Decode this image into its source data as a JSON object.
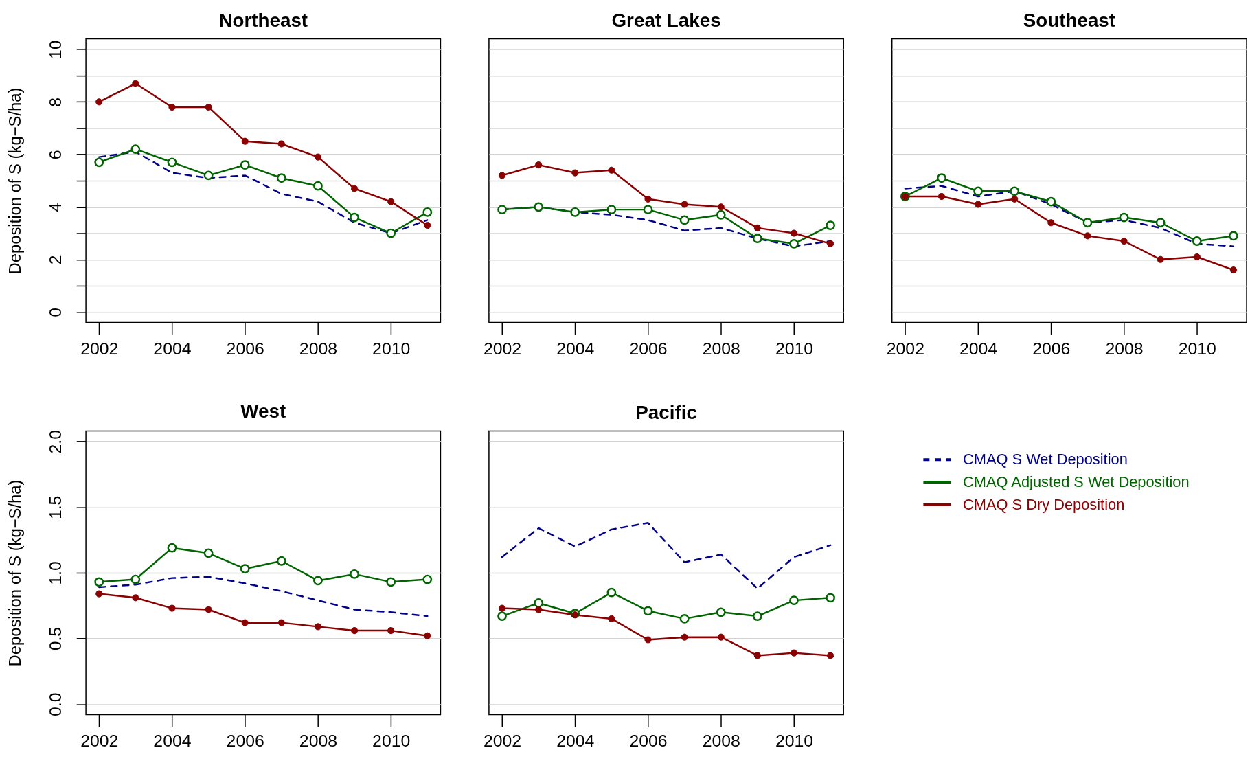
{
  "chart_data": [
    {
      "type": "line",
      "title": "Northeast",
      "ylabel": "Deposition of S (kg−S/ha)",
      "x": [
        2002,
        2003,
        2004,
        2005,
        2006,
        2007,
        2008,
        2009,
        2010,
        2011
      ],
      "xlim": [
        2001.64,
        2011.36
      ],
      "xticks": [
        2002,
        2004,
        2006,
        2008,
        2010
      ],
      "ylim": [
        -0.4,
        10.4
      ],
      "yticks": [
        0,
        {
          "value": 1,
          "label": null
        },
        2,
        {
          "value": 3,
          "label": null
        },
        4,
        {
          "value": 5,
          "label": null
        },
        6,
        {
          "value": 7,
          "label": null
        },
        8,
        {
          "value": 9,
          "label": null
        },
        10
      ],
      "grid": "y",
      "series": [
        {
          "color": "#00008b",
          "line_style": "dashed",
          "marker": "none",
          "values": [
            5.9,
            6.1,
            5.3,
            5.1,
            5.2,
            4.5,
            4.2,
            3.4,
            3.0,
            3.5
          ]
        },
        {
          "color": "#006400",
          "line_style": "solid",
          "marker": "circle",
          "values": [
            5.7,
            6.2,
            5.7,
            5.2,
            5.6,
            5.1,
            4.8,
            3.6,
            3.0,
            3.8
          ]
        },
        {
          "color": "#8b0000",
          "line_style": "solid",
          "marker": "circle",
          "values": [
            8.0,
            8.7,
            7.8,
            7.8,
            6.5,
            6.4,
            5.9,
            4.7,
            4.2,
            3.3
          ]
        }
      ]
    },
    {
      "type": "line",
      "title": "Great Lakes",
      "x": [
        2002,
        2003,
        2004,
        2005,
        2006,
        2007,
        2008,
        2009,
        2010,
        2011
      ],
      "xlim": [
        2001.64,
        2011.36
      ],
      "xticks": [
        2002,
        2004,
        2006,
        2008,
        2010
      ],
      "ylim": [
        -0.4,
        10.4
      ],
      "yticks": [
        0,
        1,
        2,
        3,
        4,
        5,
        6,
        7,
        8,
        9,
        10
      ],
      "grid": "y",
      "tick_labels": "x",
      "series": [
        {
          "color": "#00008b",
          "line_style": "dashed",
          "marker": "none",
          "values": [
            3.9,
            4.0,
            3.8,
            3.7,
            3.5,
            3.1,
            3.2,
            2.8,
            2.5,
            2.7
          ]
        },
        {
          "color": "#006400",
          "line_style": "solid",
          "marker": "circle",
          "values": [
            3.9,
            4.0,
            3.8,
            3.9,
            3.9,
            3.5,
            3.7,
            2.8,
            2.6,
            3.3
          ]
        },
        {
          "color": "#8b0000",
          "line_style": "solid",
          "marker": "circle",
          "values": [
            5.2,
            5.6,
            5.3,
            5.4,
            4.3,
            4.1,
            4.0,
            3.2,
            3.0,
            2.6
          ]
        }
      ]
    },
    {
      "type": "line",
      "title": "Southeast",
      "x": [
        2002,
        2003,
        2004,
        2005,
        2006,
        2007,
        2008,
        2009,
        2010,
        2011
      ],
      "xlim": [
        2001.64,
        2011.36
      ],
      "xticks": [
        2002,
        2004,
        2006,
        2008,
        2010
      ],
      "ylim": [
        -0.4,
        10.4
      ],
      "yticks": [
        0,
        1,
        2,
        3,
        4,
        5,
        6,
        7,
        8,
        9,
        10
      ],
      "grid": "y",
      "tick_labels": "x",
      "series": [
        {
          "color": "#00008b",
          "line_style": "dashed",
          "marker": "none",
          "values": [
            4.7,
            4.8,
            4.4,
            4.6,
            4.1,
            3.4,
            3.5,
            3.2,
            2.6,
            2.5
          ]
        },
        {
          "color": "#006400",
          "line_style": "solid",
          "marker": "circle",
          "values": [
            4.4,
            5.1,
            4.6,
            4.6,
            4.2,
            3.4,
            3.6,
            3.4,
            2.7,
            2.9
          ]
        },
        {
          "color": "#8b0000",
          "line_style": "solid",
          "marker": "circle",
          "values": [
            4.4,
            4.4,
            4.1,
            4.3,
            3.4,
            2.9,
            2.7,
            2.0,
            2.1,
            1.6
          ]
        }
      ]
    },
    {
      "type": "line",
      "title": "West",
      "ylabel": "Deposition of S (kg−S/ha)",
      "x": [
        2002,
        2003,
        2004,
        2005,
        2006,
        2007,
        2008,
        2009,
        2010,
        2011
      ],
      "xlim": [
        2001.64,
        2011.36
      ],
      "xticks": [
        2002,
        2004,
        2006,
        2008,
        2010
      ],
      "ylim": [
        -0.08,
        2.08
      ],
      "yticks": [
        {
          "value": 0,
          "label": "0.0"
        },
        0.5,
        {
          "value": 1,
          "label": "1.0"
        },
        1.5,
        {
          "value": 2,
          "label": "2.0"
        }
      ],
      "grid": "y",
      "series": [
        {
          "color": "#00008b",
          "line_style": "dashed",
          "marker": "none",
          "values": [
            0.89,
            0.91,
            0.96,
            0.97,
            0.92,
            0.86,
            0.79,
            0.72,
            0.7,
            0.67
          ]
        },
        {
          "color": "#006400",
          "line_style": "solid",
          "marker": "circle",
          "values": [
            0.93,
            0.95,
            1.19,
            1.15,
            1.03,
            1.09,
            0.94,
            0.99,
            0.93,
            0.95
          ]
        },
        {
          "color": "#8b0000",
          "line_style": "solid",
          "marker": "circle",
          "values": [
            0.84,
            0.81,
            0.73,
            0.72,
            0.62,
            0.62,
            0.59,
            0.56,
            0.56,
            0.52
          ]
        }
      ]
    },
    {
      "type": "line",
      "title": "Pacific",
      "x": [
        2002,
        2003,
        2004,
        2005,
        2006,
        2007,
        2008,
        2009,
        2010,
        2011
      ],
      "xlim": [
        2001.64,
        2011.36
      ],
      "xticks": [
        2002,
        2004,
        2006,
        2008,
        2010
      ],
      "ylim": [
        -0.08,
        2.08
      ],
      "yticks": [
        0,
        0.5,
        1,
        1.5,
        2
      ],
      "grid": "y",
      "tick_labels": "x",
      "legend": "right",
      "series": [
        {
          "name": "CMAQ S Wet Deposition",
          "color": "#00008b",
          "line_style": "dashed",
          "marker": "none",
          "values": [
            1.12,
            1.34,
            1.2,
            1.33,
            1.38,
            1.08,
            1.14,
            0.88,
            1.12,
            1.21
          ]
        },
        {
          "name": "CMAQ Adjusted S Wet Deposition",
          "color": "#006400",
          "line_style": "solid",
          "marker": "circle",
          "values": [
            0.67,
            0.77,
            0.69,
            0.85,
            0.71,
            0.65,
            0.7,
            0.67,
            0.79,
            0.81
          ]
        },
        {
          "name": "CMAQ S Dry Deposition",
          "color": "#8b0000",
          "line_style": "solid",
          "marker": "circle",
          "values": [
            0.73,
            0.72,
            0.68,
            0.65,
            0.49,
            0.51,
            0.51,
            0.37,
            0.39,
            0.37
          ]
        }
      ]
    }
  ]
}
